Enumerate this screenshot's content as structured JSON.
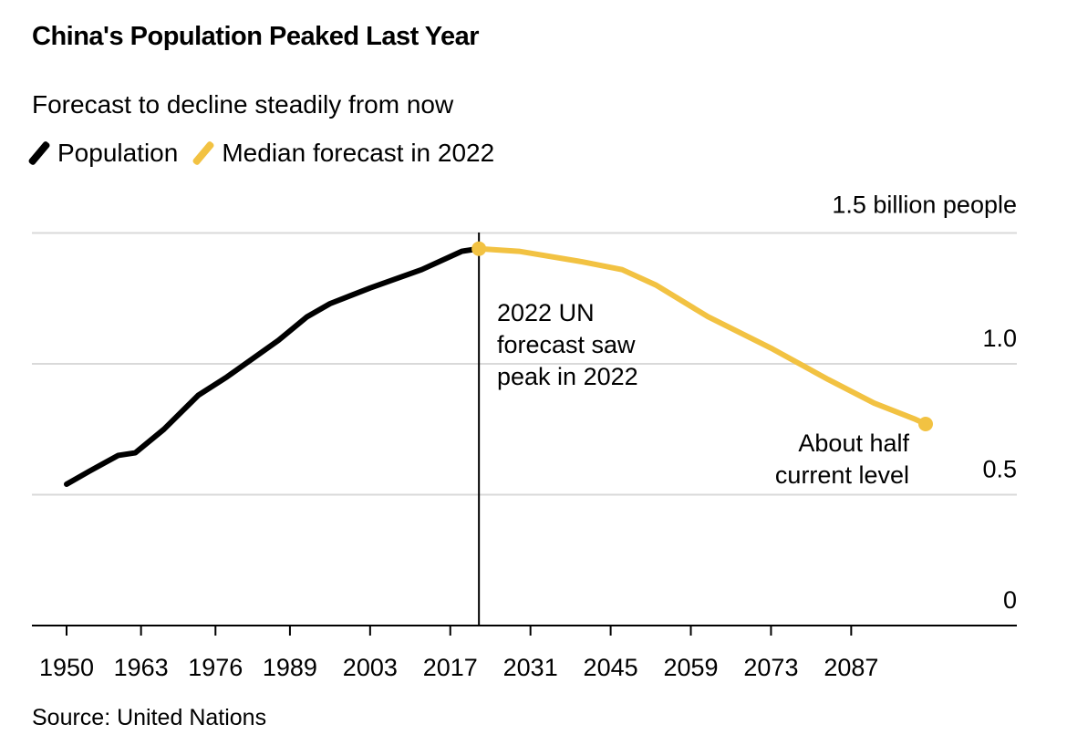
{
  "chart_data": {
    "type": "line",
    "title": "China's Population Peaked Last Year",
    "subtitle": "Forecast to decline steadily from now",
    "ylabel": "1.5 billion people",
    "xlim": [
      1950,
      2100
    ],
    "ylim": [
      0,
      1.5
    ],
    "grid": true,
    "legend_placement": "top-left",
    "x_ticks": [
      "1950",
      "1963",
      "1976",
      "1989",
      "2003",
      "2017",
      "2031",
      "2045",
      "2059",
      "2073",
      "2087"
    ],
    "y_ticks": [
      {
        "value": 0,
        "label": "0"
      },
      {
        "value": 0.5,
        "label": "0.5"
      },
      {
        "value": 1.0,
        "label": "1.0"
      },
      {
        "value": 1.5,
        "label": "1.5 billion people"
      }
    ],
    "series": [
      {
        "name": "Population",
        "color": "#000000",
        "x": [
          1950,
          1954,
          1959,
          1962,
          1967,
          1973,
          1978,
          1987,
          1992,
          1996,
          2003,
          2012,
          2019,
          2022
        ],
        "y": [
          0.54,
          0.59,
          0.65,
          0.66,
          0.75,
          0.88,
          0.95,
          1.09,
          1.18,
          1.23,
          1.29,
          1.36,
          1.43,
          1.44
        ]
      },
      {
        "name": "Median forecast in 2022",
        "color": "#F2C242",
        "x": [
          2022,
          2029,
          2040,
          2047,
          2053,
          2062,
          2073,
          2083,
          2091,
          2098,
          2100
        ],
        "y": [
          1.44,
          1.43,
          1.39,
          1.36,
          1.3,
          1.18,
          1.06,
          0.94,
          0.85,
          0.79,
          0.77
        ]
      }
    ],
    "annotations": [
      {
        "text": [
          "2022 UN",
          "forecast saw",
          "peak in 2022"
        ],
        "x": 2022
      },
      {
        "text": [
          "About half",
          "current level"
        ],
        "x": 2100
      }
    ],
    "source": "Source: United Nations"
  }
}
